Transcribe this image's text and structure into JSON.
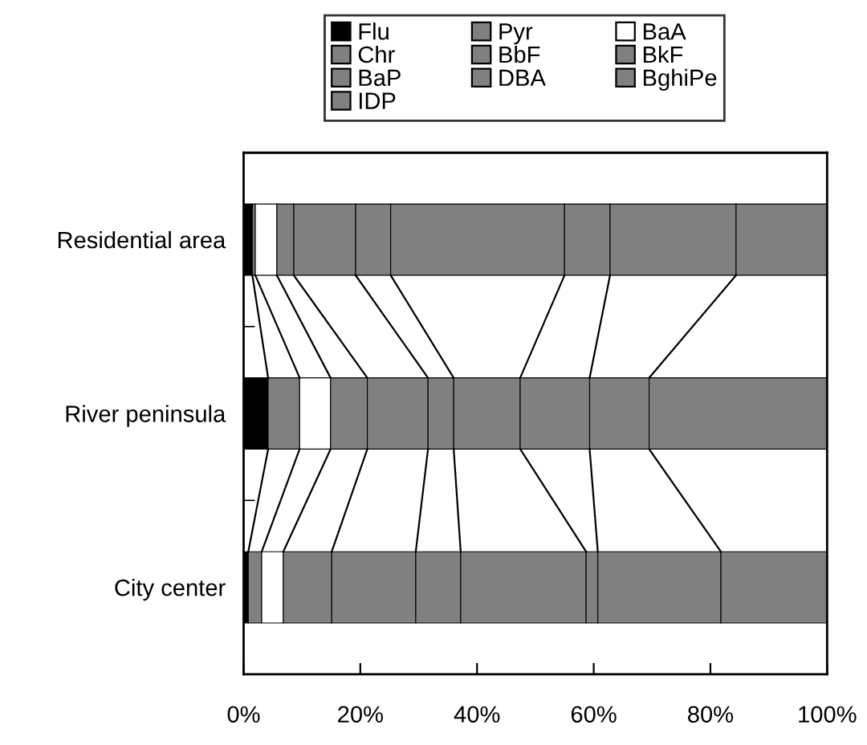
{
  "chart_data": {
    "type": "bar",
    "orientation": "horizontal",
    "stacked": true,
    "categories": [
      "Residential area",
      "River peninsula",
      "City center"
    ],
    "series": [
      {
        "name": "Flu",
        "color": "#000000",
        "values": [
          1.5,
          4.2,
          0.8
        ]
      },
      {
        "name": "Pyr",
        "color": "#808080",
        "values": [
          0.5,
          5.4,
          2.3
        ]
      },
      {
        "name": "BaA",
        "color": "#ffffff",
        "values": [
          3.7,
          5.3,
          3.7
        ]
      },
      {
        "name": "Chr",
        "color": "#808080",
        "values": [
          2.9,
          6.3,
          8.3
        ]
      },
      {
        "name": "BbF",
        "color": "#808080",
        "values": [
          10.6,
          10.4,
          14.4
        ]
      },
      {
        "name": "BkF",
        "color": "#808080",
        "values": [
          6.0,
          4.4,
          7.7
        ]
      },
      {
        "name": "BaP",
        "color": "#808080",
        "values": [
          29.8,
          11.4,
          21.5
        ]
      },
      {
        "name": "DBA",
        "color": "#808080",
        "values": [
          7.8,
          11.9,
          2.0
        ]
      },
      {
        "name": "BghiPe",
        "color": "#808080",
        "values": [
          21.6,
          10.2,
          21.1
        ]
      },
      {
        "name": "IDP",
        "color": "#808080",
        "values": [
          15.6,
          30.5,
          18.2
        ]
      }
    ],
    "xlim": [
      0,
      100
    ],
    "xticks": [
      {
        "value": 0,
        "label": "0%"
      },
      {
        "value": 20,
        "label": "20%"
      },
      {
        "value": 40,
        "label": "40%"
      },
      {
        "value": 60,
        "label": "60%"
      },
      {
        "value": 80,
        "label": "80%"
      },
      {
        "value": 100,
        "label": "100%"
      }
    ],
    "legend": "top",
    "grid": false
  }
}
